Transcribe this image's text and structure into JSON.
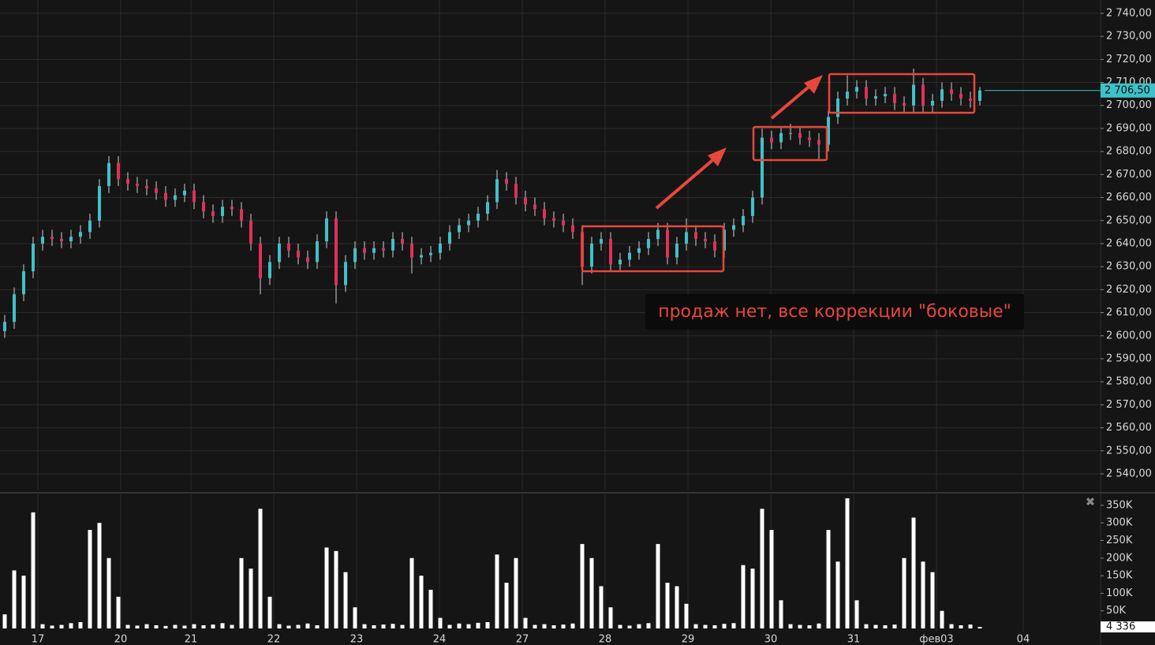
{
  "chart_data": [
    {
      "type": "candlestick",
      "up_color": "#3fc1c9",
      "down_color": "#e0305a",
      "wick_color": "#d0d0d0",
      "grid": true,
      "ylim": [
        2532.8,
        2745.8
      ],
      "yticks": [
        {
          "value": 2540,
          "label": "2 540,00"
        },
        {
          "value": 2550,
          "label": "2 550,00"
        },
        {
          "value": 2560,
          "label": "2 560,00"
        },
        {
          "value": 2570,
          "label": "2 570,00"
        },
        {
          "value": 2580,
          "label": "2 580,00"
        },
        {
          "value": 2590,
          "label": "2 590,00"
        },
        {
          "value": 2600,
          "label": "2 600,00"
        },
        {
          "value": 2610,
          "label": "2 610,00"
        },
        {
          "value": 2620,
          "label": "2 620,00"
        },
        {
          "value": 2630,
          "label": "2 630,00"
        },
        {
          "value": 2640,
          "label": "2 640,00"
        },
        {
          "value": 2650,
          "label": "2 650,00"
        },
        {
          "value": 2660,
          "label": "2 660,00"
        },
        {
          "value": 2670,
          "label": "2 670,00"
        },
        {
          "value": 2680,
          "label": "2 680,00"
        },
        {
          "value": 2690,
          "label": "2 690,00"
        },
        {
          "value": 2700,
          "label": "2 700,00"
        },
        {
          "value": 2710,
          "label": "2 710,00"
        },
        {
          "value": 2720,
          "label": "2 720,00"
        },
        {
          "value": 2730,
          "label": "2 730,00"
        },
        {
          "value": 2740,
          "label": "2 740,00"
        }
      ],
      "last_price": {
        "value": 2706.5,
        "label": "2 706,50"
      },
      "annotation": "продаж нет, все коррекции \"боковые\"",
      "open": [
        2602,
        2606,
        2618,
        2628,
        2640,
        2643,
        2642,
        2641,
        2643,
        2645,
        2650,
        2665,
        2675,
        2668,
        2666,
        2665,
        2664,
        2662,
        2659,
        2661,
        2663,
        2658,
        2654,
        2652,
        2656,
        2655,
        2650,
        2640,
        2625,
        2632,
        2640,
        2637,
        2634,
        2632,
        2641,
        2651,
        2622,
        2632,
        2638,
        2636,
        2638,
        2637,
        2642,
        2640,
        2634,
        2635,
        2636,
        2640,
        2645,
        2648,
        2650,
        2653,
        2658,
        2668,
        2666,
        2660,
        2657,
        2655,
        2651,
        2650,
        2648,
        2645,
        2630,
        2640,
        2642,
        2631,
        2633,
        2636,
        2638,
        2642,
        2646,
        2634,
        2640,
        2645,
        2642,
        2641,
        2637,
        2646,
        2648,
        2652,
        2660,
        2686,
        2684,
        2688,
        2688,
        2686,
        2685,
        2683,
        2695,
        2703,
        2706,
        2708,
        2703,
        2704,
        2705,
        2701,
        2700,
        2709,
        2700,
        2702,
        2707,
        2705,
        2703,
        2702
      ],
      "high": [
        2609,
        2621,
        2631,
        2643,
        2646,
        2646,
        2645,
        2646,
        2648,
        2653,
        2668,
        2678,
        2678,
        2671,
        2669,
        2668,
        2667,
        2665,
        2664,
        2666,
        2666,
        2661,
        2657,
        2659,
        2659,
        2658,
        2653,
        2643,
        2635,
        2643,
        2643,
        2640,
        2637,
        2644,
        2654,
        2654,
        2635,
        2641,
        2641,
        2641,
        2641,
        2645,
        2645,
        2643,
        2638,
        2639,
        2643,
        2648,
        2651,
        2653,
        2656,
        2661,
        2672,
        2671,
        2669,
        2663,
        2660,
        2658,
        2654,
        2653,
        2651,
        2648,
        2643,
        2645,
        2645,
        2636,
        2639,
        2641,
        2645,
        2649,
        2649,
        2643,
        2651,
        2648,
        2645,
        2644,
        2649,
        2651,
        2655,
        2663,
        2690,
        2689,
        2691,
        2692,
        2691,
        2689,
        2688,
        2698,
        2706,
        2713,
        2711,
        2711,
        2707,
        2708,
        2708,
        2704,
        2716,
        2712,
        2705,
        2710,
        2710,
        2708,
        2706,
        2708
      ],
      "low": [
        2599,
        2603,
        2615,
        2625,
        2637,
        2639,
        2638,
        2638,
        2640,
        2642,
        2647,
        2662,
        2665,
        2663,
        2662,
        2661,
        2659,
        2656,
        2656,
        2658,
        2655,
        2651,
        2649,
        2649,
        2652,
        2647,
        2637,
        2618,
        2622,
        2629,
        2634,
        2631,
        2629,
        2629,
        2638,
        2614,
        2619,
        2629,
        2633,
        2633,
        2634,
        2634,
        2637,
        2627,
        2631,
        2632,
        2633,
        2637,
        2642,
        2645,
        2647,
        2650,
        2655,
        2663,
        2657,
        2654,
        2652,
        2648,
        2647,
        2645,
        2642,
        2622,
        2627,
        2637,
        2628,
        2628,
        2630,
        2633,
        2635,
        2639,
        2631,
        2631,
        2637,
        2639,
        2638,
        2634,
        2634,
        2643,
        2645,
        2649,
        2657,
        2681,
        2681,
        2685,
        2683,
        2682,
        2676,
        2680,
        2692,
        2700,
        2703,
        2700,
        2700,
        2701,
        2698,
        2697,
        2697,
        2697,
        2697,
        2699,
        2702,
        2700,
        2699,
        2700
      ],
      "close": [
        2606,
        2618,
        2628,
        2640,
        2643,
        2642,
        2641,
        2643,
        2645,
        2650,
        2665,
        2675,
        2668,
        2666,
        2665,
        2664,
        2662,
        2659,
        2661,
        2663,
        2658,
        2654,
        2652,
        2656,
        2655,
        2650,
        2640,
        2625,
        2632,
        2640,
        2637,
        2634,
        2632,
        2641,
        2651,
        2622,
        2632,
        2638,
        2636,
        2638,
        2637,
        2642,
        2640,
        2634,
        2635,
        2636,
        2640,
        2645,
        2648,
        2650,
        2653,
        2658,
        2668,
        2666,
        2660,
        2657,
        2655,
        2651,
        2650,
        2648,
        2645,
        2630,
        2640,
        2642,
        2631,
        2633,
        2636,
        2638,
        2642,
        2646,
        2634,
        2640,
        2645,
        2642,
        2641,
        2637,
        2646,
        2648,
        2652,
        2660,
        2686,
        2684,
        2688,
        2688,
        2686,
        2685,
        2683,
        2695,
        2703,
        2706,
        2708,
        2703,
        2704,
        2705,
        2701,
        2700,
        2709,
        2700,
        2702,
        2707,
        2705,
        2703,
        2702,
        2706.5
      ]
    },
    {
      "type": "bar",
      "color": "#ffffff",
      "grid": true,
      "ylim": [
        0,
        381000
      ],
      "yticks": [
        {
          "value": 50000,
          "label": "50K"
        },
        {
          "value": 100000,
          "label": "100K"
        },
        {
          "value": 150000,
          "label": "150K"
        },
        {
          "value": 200000,
          "label": "200K"
        },
        {
          "value": 250000,
          "label": "250K"
        },
        {
          "value": 300000,
          "label": "300K"
        },
        {
          "value": 350000,
          "label": "350K"
        }
      ],
      "xlim": [
        0,
        116.25
      ],
      "xticks": [
        {
          "value": 4,
          "label": "17"
        },
        {
          "value": 12.75,
          "label": "20"
        },
        {
          "value": 20.17,
          "label": "21"
        },
        {
          "value": 28.92,
          "label": "22"
        },
        {
          "value": 37.67,
          "label": "23"
        },
        {
          "value": 46.42,
          "label": "24"
        },
        {
          "value": 55.17,
          "label": "27"
        },
        {
          "value": 63.92,
          "label": "28"
        },
        {
          "value": 72.67,
          "label": "29"
        },
        {
          "value": 81.42,
          "label": "30"
        },
        {
          "value": 90.17,
          "label": "31"
        },
        {
          "value": 98.92,
          "label": "фев03"
        },
        {
          "value": 108.08,
          "label": "04"
        }
      ],
      "last_volume": {
        "value": 4336,
        "label": "4 336"
      },
      "values": [
        40000,
        165000,
        150000,
        330000,
        12000,
        8000,
        10000,
        15000,
        18000,
        280000,
        300000,
        200000,
        90000,
        10000,
        8000,
        12000,
        9000,
        7000,
        10000,
        8000,
        12000,
        9000,
        11000,
        15000,
        10000,
        200000,
        170000,
        340000,
        90000,
        12000,
        8000,
        10000,
        14000,
        9000,
        230000,
        220000,
        160000,
        60000,
        12000,
        9000,
        11000,
        13000,
        10000,
        200000,
        150000,
        110000,
        30000,
        10000,
        14000,
        12000,
        16000,
        18000,
        210000,
        130000,
        200000,
        30000,
        10000,
        12000,
        9000,
        11000,
        14000,
        240000,
        200000,
        120000,
        60000,
        10000,
        8000,
        12000,
        15000,
        240000,
        130000,
        120000,
        70000,
        12000,
        10000,
        9000,
        13000,
        15000,
        180000,
        170000,
        340000,
        280000,
        80000,
        12000,
        10000,
        9000,
        14000,
        280000,
        190000,
        370000,
        80000,
        12000,
        10000,
        9000,
        11000,
        200000,
        315000,
        190000,
        160000,
        50000,
        12000,
        9000,
        11000,
        4336
      ]
    }
  ]
}
